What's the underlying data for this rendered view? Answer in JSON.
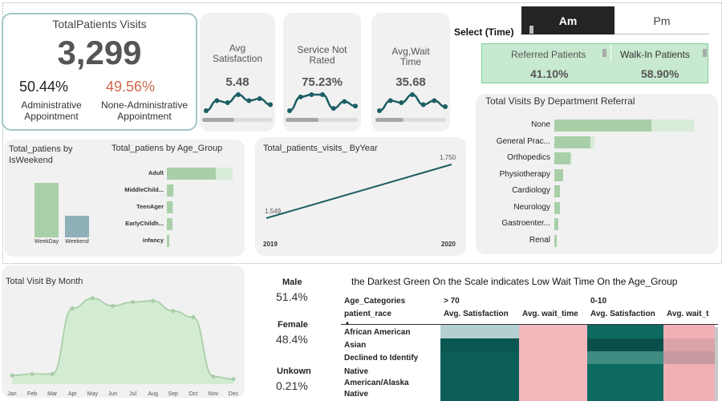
{
  "total_visits": {
    "title": "TotalPatients Visits",
    "value": "3,299",
    "admin_pct": "50.44%",
    "admin_label_1": "Administrative",
    "admin_label_2": "Appointment",
    "nonadmin_pct": "49.56%",
    "nonadmin_label_1": "None-Administrative",
    "nonadmin_label_2": "Appointment",
    "colors": {
      "admin": "#222222",
      "nonadmin": "#d0684a"
    }
  },
  "kpis": [
    {
      "title_1": "Avg",
      "title_2": "Satisfaction",
      "value": "5.48",
      "spark": [
        5.1,
        5.6,
        5.5,
        5.9,
        5.6,
        5.7,
        5.4
      ],
      "slider": 0.45
    },
    {
      "title_1": "Service Not",
      "title_2": "Rated",
      "value": "75.23%",
      "spark": [
        74.8,
        75.4,
        75.5,
        75.5,
        74.9,
        75.2,
        75.0
      ],
      "slider": 0.45
    },
    {
      "title_1": "Avg,Wait",
      "title_2": "Time",
      "value": "35.68",
      "spark": [
        35.1,
        35.6,
        35.5,
        35.9,
        35.4,
        35.6,
        35.3
      ],
      "slider": 0.4
    }
  ],
  "time_select": {
    "label": "Select (Time)",
    "options": [
      "Am",
      "Pm"
    ],
    "selected": "Am"
  },
  "referral": {
    "referred_label": "Referred Patients",
    "referred_value": "41.10%",
    "walkin_label": "Walk-In Patients",
    "walkin_value": "58.90%"
  },
  "dept_chart": {
    "title": "Total Visits By Department Referral",
    "chart_data": {
      "type": "bar",
      "orientation": "horizontal",
      "categories": [
        "None",
        "General Prac...",
        "Orthopedics",
        "Physiotherapy",
        "Cardiology",
        "Neurology",
        "Gastroenter...",
        "Renal"
      ],
      "values": [
        1950,
        730,
        320,
        170,
        120,
        110,
        80,
        40
      ],
      "totals": [
        2800,
        800,
        360,
        180,
        120,
        110,
        80,
        40
      ]
    }
  },
  "weekend_chart": {
    "title_1": "Total_patiens by",
    "title_2": "IsWeekend",
    "chart_data": {
      "type": "bar",
      "categories": [
        "WeekDay",
        "Weekend"
      ],
      "values": [
        2370,
        929
      ],
      "colors": [
        "#a9cfa8",
        "#8fb0b8"
      ]
    }
  },
  "age_chart": {
    "title": "Total_patiens by Age_Group",
    "chart_data": {
      "type": "bar",
      "orientation": "horizontal",
      "categories": [
        "Adult",
        "MiddleChild...",
        "TeenAger",
        "EarlyChildh...",
        "infancy"
      ],
      "values": [
        1700,
        220,
        210,
        200,
        60
      ],
      "totals": [
        2300,
        260,
        230,
        210,
        60
      ]
    }
  },
  "year_chart": {
    "title": "Total_patients_visits_ ByYear",
    "chart_data": {
      "type": "line",
      "x": [
        "2019",
        "2020"
      ],
      "values": [
        1549,
        1750
      ],
      "labels": [
        "1,549",
        "1,750"
      ],
      "ylim": [
        1480,
        1780
      ]
    }
  },
  "month_chart": {
    "title": "Total Visit By Month",
    "chart_data": {
      "type": "area",
      "categories": [
        "Jan",
        "Feb",
        "Mar",
        "Apr",
        "May",
        "Jun",
        "Jul",
        "Aug",
        "Sep",
        "Oct",
        "Nov",
        "Dec"
      ],
      "values": [
        35,
        40,
        40,
        300,
        340,
        310,
        325,
        330,
        290,
        265,
        30,
        20
      ],
      "ylim": [
        0,
        400
      ]
    }
  },
  "gender": [
    {
      "label": "Male",
      "value": "51.4%"
    },
    {
      "label": "Female",
      "value": "48.4%"
    },
    {
      "label": "Unkown",
      "value": "0.21%"
    }
  ],
  "heat": {
    "title": "the Darkest Green On the Scale indicates Low Wait Time On the Age_Group",
    "row_header_1": "Age_Categories",
    "row_header_2": "patient_race",
    "groups": [
      "> 70",
      "0-10"
    ],
    "columns": [
      "Avg. Satisfaction",
      "Avg. wait_time",
      "Avg. Satisfaction",
      "Avg. wait_t"
    ],
    "rows": [
      "African American",
      "Asian",
      "Declined to Identify",
      "Native American/Alaska Native"
    ],
    "colors": [
      [
        "#b4cfd0",
        "#f2b8bc",
        "#0c6a60",
        "#f0b1b6"
      ],
      [
        "#0a5752",
        "#f2b8bc",
        "#0a4f4a",
        "#d9a3a9"
      ],
      [
        "#0b5e57",
        "#f2b8bc",
        "#3f8c83",
        "#c79aa0"
      ],
      [
        "#0c5f58",
        "#f2b8bc",
        "#0c6a60",
        "#f0b1b6"
      ]
    ]
  }
}
